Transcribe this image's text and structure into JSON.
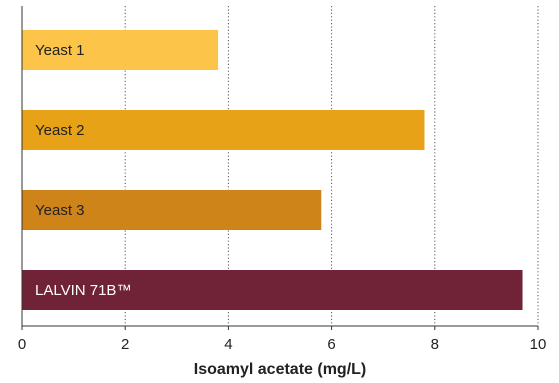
{
  "chart_data": {
    "type": "bar",
    "orientation": "horizontal",
    "categories": [
      "Yeast 1",
      "Yeast 2",
      "Yeast 3",
      "LALVIN 71B™"
    ],
    "values": [
      3.8,
      7.8,
      5.8,
      9.7
    ],
    "colors": [
      "#fcc54a",
      "#e8a217",
      "#cf8419",
      "#702236"
    ],
    "label_colors": [
      "#222222",
      "#222222",
      "#222222",
      "#ffffff"
    ],
    "xlabel": "Isoamyl acetate (mg/L)",
    "xlim": [
      0,
      10
    ],
    "xticks": [
      0,
      2,
      4,
      6,
      8,
      10
    ],
    "grid": "vertical-dotted",
    "title": "",
    "ylabel": ""
  }
}
